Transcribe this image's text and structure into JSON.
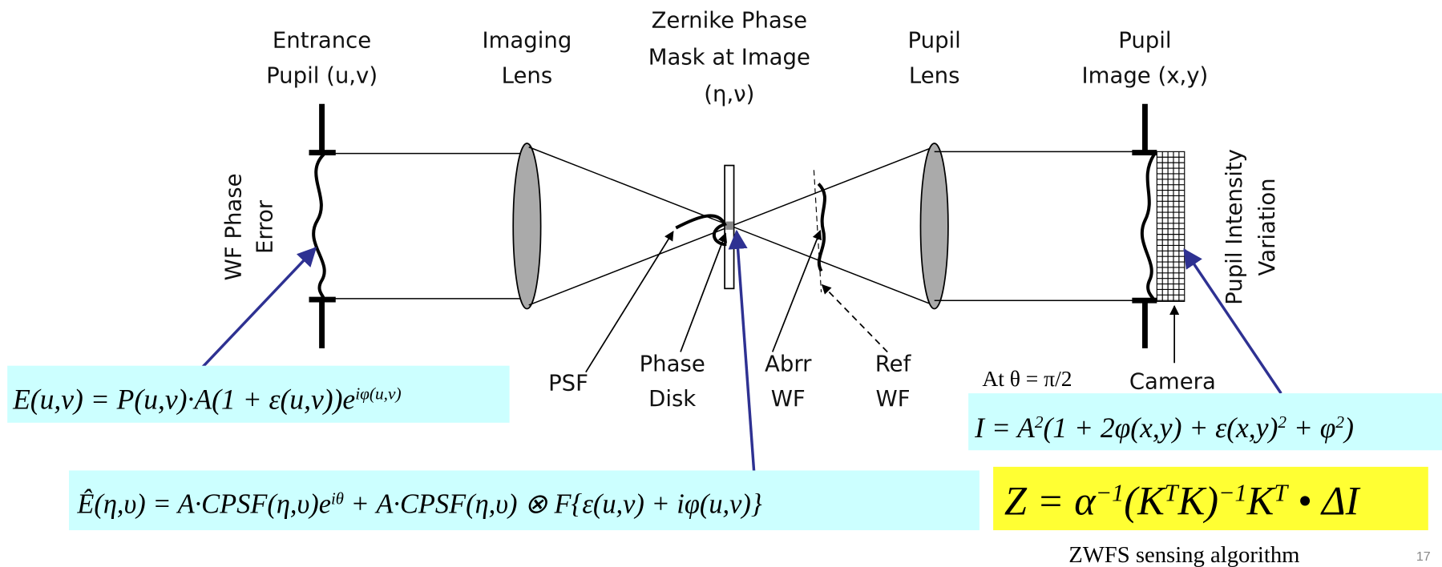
{
  "labels": {
    "entrance_pupil": [
      "Entrance",
      "Pupil (u,v)"
    ],
    "imaging_lens": [
      "Imaging",
      "Lens"
    ],
    "phase_mask": [
      "Zernike Phase",
      "Mask at Image",
      "(η,ν)"
    ],
    "pupil_lens": [
      "Pupil",
      "Lens"
    ],
    "pupil_image": [
      "Pupil",
      "Image (x,y)"
    ],
    "wf_phase_error": [
      "WF Phase",
      "Error"
    ],
    "pupil_intensity": [
      "Pupil Intensity",
      "Variation"
    ],
    "psf": [
      "PSF"
    ],
    "phase_disk": [
      "Phase",
      "Disk"
    ],
    "abrr_wf": [
      "Abrr",
      "WF"
    ],
    "ref_wf": [
      "Ref",
      "WF"
    ],
    "camera": [
      "Camera"
    ]
  },
  "condition": "At θ = π/2",
  "equations": {
    "e_field": [
      "E(u,v) = P(u,v)·A(1 + ε(u,v))e",
      "iφ(u,v)"
    ],
    "e_hat": [
      "Ê(η,υ) = A·CPSF(η,υ)e",
      "iθ",
      " + A·CPSF(η,υ) ⊗ F{ε(u,v) + iφ(u,v)}"
    ],
    "intensity": [
      "I = A",
      "2",
      "(1 + 2φ(x,y) + ε(x,y)",
      "2",
      " + φ",
      "2",
      ")"
    ],
    "z": [
      "Z = α",
      "−1",
      "(K",
      "T",
      "K)",
      "−1",
      "K",
      "T",
      " • ΔI"
    ]
  },
  "caption": "ZWFS sensing algorithm",
  "page_number": "17"
}
